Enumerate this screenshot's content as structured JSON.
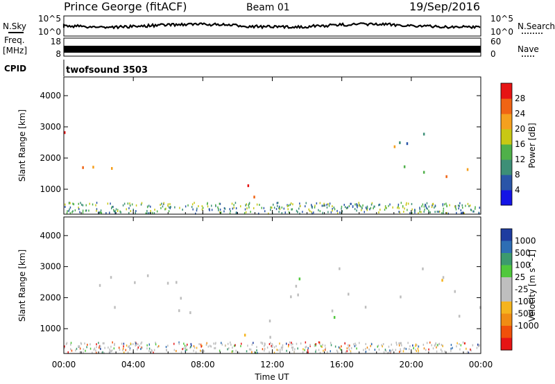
{
  "header": {
    "site": "Prince George (fitACF)",
    "beam": "Beam 01",
    "date": "19/Sep/2016"
  },
  "nsky_panel": {
    "left_label": "N.Sky",
    "right_label": "N.Search",
    "left_ticks": [
      "10^5",
      "10^0"
    ],
    "right_ticks": [
      "10^5",
      "10^0"
    ]
  },
  "freq_panel": {
    "left_label_1": "Freq.",
    "left_label_2": "[MHz]",
    "right_label": "Nave",
    "left_ticks": [
      "18",
      "8"
    ],
    "right_ticks": [
      "60",
      "0"
    ]
  },
  "cpid": {
    "label": "CPID",
    "value": "twofsound 3503"
  },
  "chart_data": [
    {
      "type": "heatmap",
      "name": "power",
      "ylabel": "Slant Range [km]",
      "xlabel": "Time UT",
      "ylim": [
        200,
        4600
      ],
      "xlim": [
        0,
        24
      ],
      "yticks": [
        "1000",
        "2000",
        "3000",
        "4000"
      ],
      "colorbar": {
        "label": "Power [dB]",
        "ticks": [
          "4",
          "8",
          "12",
          "16",
          "20",
          "24",
          "28"
        ],
        "colors": [
          "#1414e6",
          "#2a55a8",
          "#3d8f77",
          "#4fb04a",
          "#c8c814",
          "#f5a01e",
          "#f06414",
          "#e61414"
        ]
      },
      "features": [
        {
          "t0": 0.0,
          "t1": 3.5,
          "r0": 2400,
          "r1": 2900,
          "level": "high"
        },
        {
          "t0": 0.0,
          "t1": 5.0,
          "r0": 1300,
          "r1": 1900,
          "level": "high"
        },
        {
          "t0": 8.3,
          "t1": 11.5,
          "r0": 600,
          "r1": 1400,
          "level": "high"
        },
        {
          "t0": 13.5,
          "t1": 24.0,
          "r0": 1400,
          "r1": 1800,
          "level": "high"
        },
        {
          "t0": 16.5,
          "t1": 24.0,
          "r0": 2300,
          "r1": 3000,
          "level": "medium"
        }
      ]
    },
    {
      "type": "heatmap",
      "name": "velocity",
      "ylabel": "Slant Range [km]",
      "xlabel": "Time UT",
      "ylim": [
        200,
        4600
      ],
      "xlim": [
        0,
        24
      ],
      "yticks": [
        "1000",
        "2000",
        "3000",
        "4000"
      ],
      "xticks": [
        "00:00",
        "04:00",
        "08:00",
        "12:00",
        "16:00",
        "20:00",
        "00:00"
      ],
      "colorbar": {
        "label": "Velocity [m s^-1]",
        "ticks": [
          "1000",
          "500",
          "100",
          "25",
          "-25",
          "-100",
          "-500",
          "-1000"
        ],
        "colors": [
          "#1e3ca0",
          "#2e6eb4",
          "#3c9a6e",
          "#50c83c",
          "#bebebe",
          "#bebebe",
          "#f5b41e",
          "#f08c14",
          "#f0500a",
          "#e61414"
        ]
      },
      "features": [
        {
          "t0": 0.0,
          "t1": 7.5,
          "r0": 1400,
          "r1": 3000,
          "level": "near-zero"
        },
        {
          "t0": 8.0,
          "t1": 12.0,
          "r0": 600,
          "r1": 1400,
          "level": "near-zero"
        },
        {
          "t0": 13.0,
          "t1": 24.0,
          "r0": 1400,
          "r1": 3100,
          "level": "near-zero"
        },
        {
          "t0": 12.3,
          "t1": 15.5,
          "r0": 300,
          "r1": 600,
          "level": "positive"
        }
      ]
    }
  ]
}
